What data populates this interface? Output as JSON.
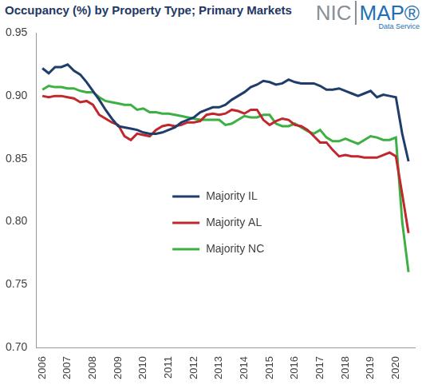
{
  "chart_data": {
    "type": "line",
    "title": "Occupancy (%) by Property Type; Primary Markets",
    "x": [
      2006,
      2006.25,
      2006.5,
      2006.75,
      2007,
      2007.25,
      2007.5,
      2007.75,
      2008,
      2008.25,
      2008.5,
      2008.75,
      2009,
      2009.25,
      2009.5,
      2009.75,
      2010,
      2010.25,
      2010.5,
      2010.75,
      2011,
      2011.25,
      2011.5,
      2011.75,
      2012,
      2012.25,
      2012.5,
      2012.75,
      2013,
      2013.25,
      2013.5,
      2013.75,
      2014,
      2014.25,
      2014.5,
      2014.75,
      2015,
      2015.25,
      2015.5,
      2015.75,
      2016,
      2016.25,
      2016.5,
      2016.75,
      2017,
      2017.25,
      2017.5,
      2017.75,
      2018,
      2018.25,
      2018.5,
      2018.75,
      2019,
      2019.25,
      2019.5,
      2019.75,
      2020,
      2020.25,
      2020.5
    ],
    "series": [
      {
        "name": "Majority IL",
        "color": "#1f3d6b",
        "values": [
          0.922,
          0.918,
          0.923,
          0.923,
          0.925,
          0.92,
          0.917,
          0.911,
          0.904,
          0.897,
          0.889,
          0.882,
          0.876,
          0.875,
          0.874,
          0.873,
          0.871,
          0.87,
          0.87,
          0.871,
          0.873,
          0.875,
          0.879,
          0.881,
          0.883,
          0.887,
          0.889,
          0.891,
          0.891,
          0.893,
          0.897,
          0.9,
          0.903,
          0.907,
          0.909,
          0.912,
          0.911,
          0.909,
          0.91,
          0.913,
          0.911,
          0.91,
          0.91,
          0.91,
          0.908,
          0.905,
          0.905,
          0.906,
          0.904,
          0.902,
          0.9,
          0.902,
          0.904,
          0.899,
          0.901,
          0.9,
          0.899,
          0.87,
          0.848
        ]
      },
      {
        "name": "Majority AL",
        "color": "#c0282d",
        "values": [
          0.9,
          0.899,
          0.9,
          0.9,
          0.899,
          0.898,
          0.895,
          0.896,
          0.893,
          0.885,
          0.882,
          0.879,
          0.877,
          0.868,
          0.865,
          0.87,
          0.869,
          0.868,
          0.873,
          0.876,
          0.877,
          0.876,
          0.877,
          0.879,
          0.879,
          0.88,
          0.885,
          0.886,
          0.885,
          0.886,
          0.889,
          0.888,
          0.886,
          0.889,
          0.889,
          0.881,
          0.877,
          0.88,
          0.882,
          0.881,
          0.877,
          0.876,
          0.873,
          0.868,
          0.863,
          0.863,
          0.857,
          0.852,
          0.853,
          0.852,
          0.852,
          0.851,
          0.851,
          0.851,
          0.853,
          0.855,
          0.852,
          0.822,
          0.791
        ]
      },
      {
        "name": "Majority NC",
        "color": "#3cb043",
        "values": [
          0.905,
          0.908,
          0.907,
          0.907,
          0.906,
          0.906,
          0.904,
          0.903,
          0.903,
          0.899,
          0.896,
          0.895,
          0.894,
          0.893,
          0.893,
          0.889,
          0.89,
          0.887,
          0.887,
          0.886,
          0.886,
          0.885,
          0.884,
          0.883,
          0.882,
          0.881,
          0.881,
          0.881,
          0.881,
          0.877,
          0.878,
          0.881,
          0.884,
          0.883,
          0.883,
          0.885,
          0.885,
          0.878,
          0.876,
          0.876,
          0.878,
          0.875,
          0.872,
          0.87,
          0.873,
          0.867,
          0.864,
          0.864,
          0.866,
          0.864,
          0.862,
          0.865,
          0.868,
          0.867,
          0.865,
          0.865,
          0.867,
          0.8,
          0.76
        ]
      }
    ],
    "xlim": [
      2005.75,
      2020.75
    ],
    "xticks": [
      2006,
      2007,
      2008,
      2009,
      2010,
      2011,
      2012,
      2013,
      2014,
      2015,
      2016,
      2017,
      2018,
      2019,
      2020
    ],
    "ylim": [
      0.7,
      0.95
    ],
    "yticks": [
      {
        "value": 0.7,
        "label": "0.70"
      },
      0.75,
      {
        "value": 0.8,
        "label": "0.80"
      },
      0.85,
      {
        "value": 0.9,
        "label": "0.90"
      },
      0.95
    ],
    "grid": false,
    "legend": "center",
    "line_style": "solid"
  },
  "logo": {
    "left": "NIC",
    "right": "MAP®",
    "subtitle": "Data Service"
  }
}
